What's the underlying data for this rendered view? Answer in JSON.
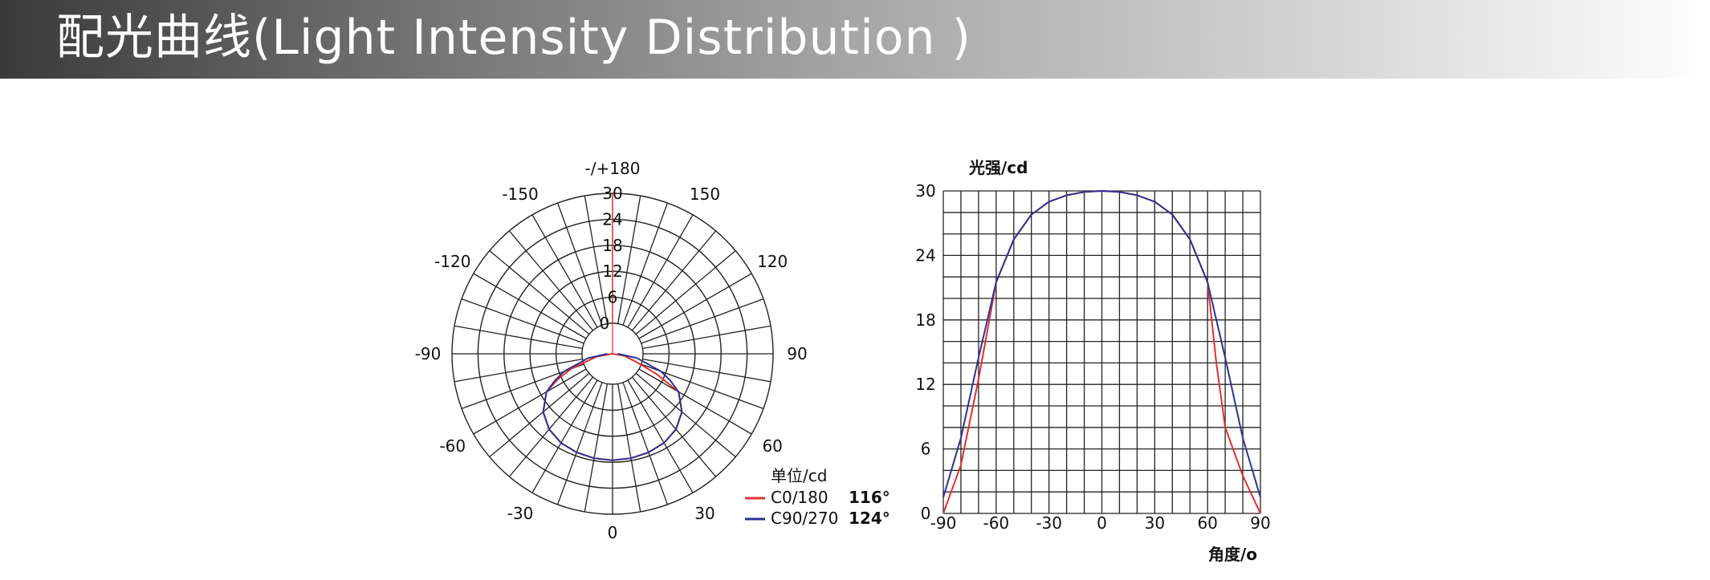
{
  "header": {
    "title": "配光曲线(Light Intensity Distribution )"
  },
  "chart_data": [
    {
      "type": "polar",
      "radial_ticks": [
        "0",
        "6",
        "12",
        "18",
        "24",
        "30"
      ],
      "radial_range": [
        0,
        30
      ],
      "angle_labels": [
        {
          "angle": 180,
          "text": "-/+180"
        },
        {
          "angle": 150,
          "text": "150"
        },
        {
          "angle": -150,
          "text": "-150"
        },
        {
          "angle": 120,
          "text": "120"
        },
        {
          "angle": -120,
          "text": "-120"
        },
        {
          "angle": 90,
          "text": "90"
        },
        {
          "angle": -90,
          "text": "-90"
        },
        {
          "angle": 60,
          "text": "60"
        },
        {
          "angle": -60,
          "text": "-60"
        },
        {
          "angle": 30,
          "text": "30"
        },
        {
          "angle": -30,
          "text": "-30"
        },
        {
          "angle": 0,
          "text": "0"
        }
      ],
      "legend": {
        "unit": "单位/cd",
        "items": [
          {
            "name": "C0/180",
            "beam": "116°",
            "color": "#e03030"
          },
          {
            "name": "C90/270",
            "beam": "124°",
            "color": "#2e3192"
          }
        ]
      }
    },
    {
      "type": "line",
      "ylabel": "光强/cd",
      "xlabel": "角度/o",
      "xlim": [
        -90,
        90
      ],
      "ylim": [
        0,
        30
      ],
      "xticks": [
        "-90",
        "-60",
        "-30",
        "0",
        "30",
        "60",
        "90"
      ],
      "yticks": [
        "0",
        "6",
        "12",
        "18",
        "24",
        "30"
      ],
      "series": [
        {
          "name": "C0/180",
          "color": "#e03030",
          "x": [
            -90,
            -80,
            -70,
            -65,
            -60,
            -50,
            -40,
            -30,
            -20,
            -10,
            0,
            10,
            20,
            30,
            40,
            50,
            60,
            65,
            70,
            80,
            90
          ],
          "y": [
            0.0,
            4.5,
            12.5,
            17.0,
            21.5,
            25.5,
            27.8,
            29.0,
            29.6,
            29.9,
            30.0,
            29.9,
            29.6,
            29.0,
            27.8,
            25.5,
            21.5,
            14.0,
            8.0,
            3.5,
            0.0
          ]
        },
        {
          "name": "C90/270",
          "color": "#2e3192",
          "x": [
            -90,
            -80,
            -70,
            -65,
            -60,
            -50,
            -40,
            -30,
            -20,
            -10,
            0,
            10,
            20,
            30,
            40,
            50,
            60,
            65,
            70,
            80,
            90
          ],
          "y": [
            1.5,
            7.0,
            14.5,
            18.0,
            21.5,
            25.5,
            27.8,
            29.0,
            29.6,
            29.9,
            30.0,
            29.9,
            29.6,
            29.0,
            27.8,
            25.5,
            21.5,
            18.0,
            14.5,
            7.0,
            1.5
          ]
        }
      ]
    }
  ]
}
